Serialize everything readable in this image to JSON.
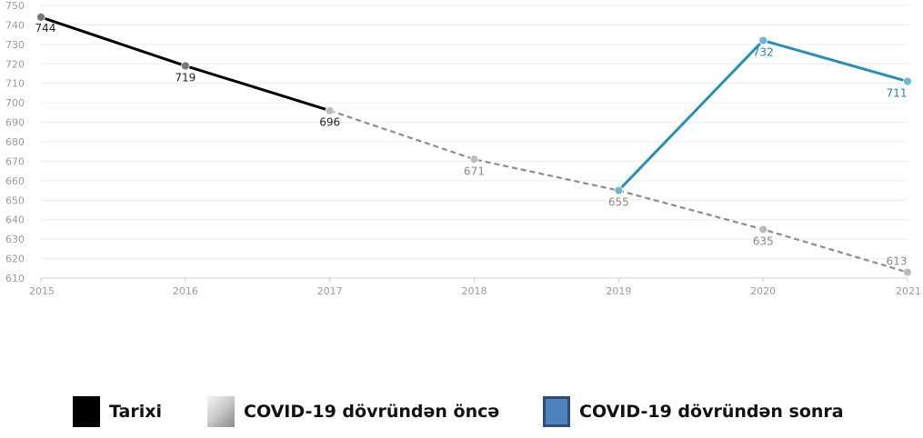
{
  "chart_data": {
    "type": "line",
    "title": "",
    "xlabel": "",
    "ylabel": "",
    "x": [
      2015,
      2016,
      2017,
      2018,
      2019,
      2020,
      2021
    ],
    "x_tick_labels": [
      "2015",
      "2016",
      "2017",
      "2018",
      "2019",
      "2020",
      "2021"
    ],
    "y_tick_labels": [
      "610",
      "620",
      "630",
      "640",
      "650",
      "660",
      "670",
      "680",
      "690",
      "700",
      "710",
      "720",
      "730",
      "740",
      "750"
    ],
    "ylim": [
      610,
      750
    ],
    "grid": true,
    "legend_position": "bottom",
    "series": [
      {
        "name": "Tarixi",
        "color": "#000000",
        "style": "solid",
        "points": [
          {
            "x": 2015,
            "y": 744,
            "label": "744"
          },
          {
            "x": 2016,
            "y": 719,
            "label": "719"
          },
          {
            "x": 2017,
            "y": 696,
            "label": "696"
          }
        ]
      },
      {
        "name": "COVID-19 dövründən öncə",
        "color": "#8c8c8c",
        "style": "dashed",
        "points": [
          {
            "x": 2017,
            "y": 696,
            "label": ""
          },
          {
            "x": 2018,
            "y": 671,
            "label": "671"
          },
          {
            "x": 2019,
            "y": 655,
            "label": "655"
          },
          {
            "x": 2020,
            "y": 635,
            "label": "635"
          },
          {
            "x": 2021,
            "y": 613,
            "label": "613"
          }
        ]
      },
      {
        "name": "COVID-19 dövründən sonra",
        "color": "#2a8fb0",
        "style": "solid",
        "points": [
          {
            "x": 2019,
            "y": 655,
            "label": ""
          },
          {
            "x": 2020,
            "y": 732,
            "label": "732"
          },
          {
            "x": 2021,
            "y": 711,
            "label": "711"
          }
        ]
      }
    ]
  },
  "legend": {
    "items": [
      {
        "label": "Tarixi",
        "color": "#000000"
      },
      {
        "label": "COVID-19 dövründən öncə",
        "color": "#b5b5b5"
      },
      {
        "label": "COVID-19 dövründən sonra",
        "color": "#4f81bd"
      }
    ]
  }
}
